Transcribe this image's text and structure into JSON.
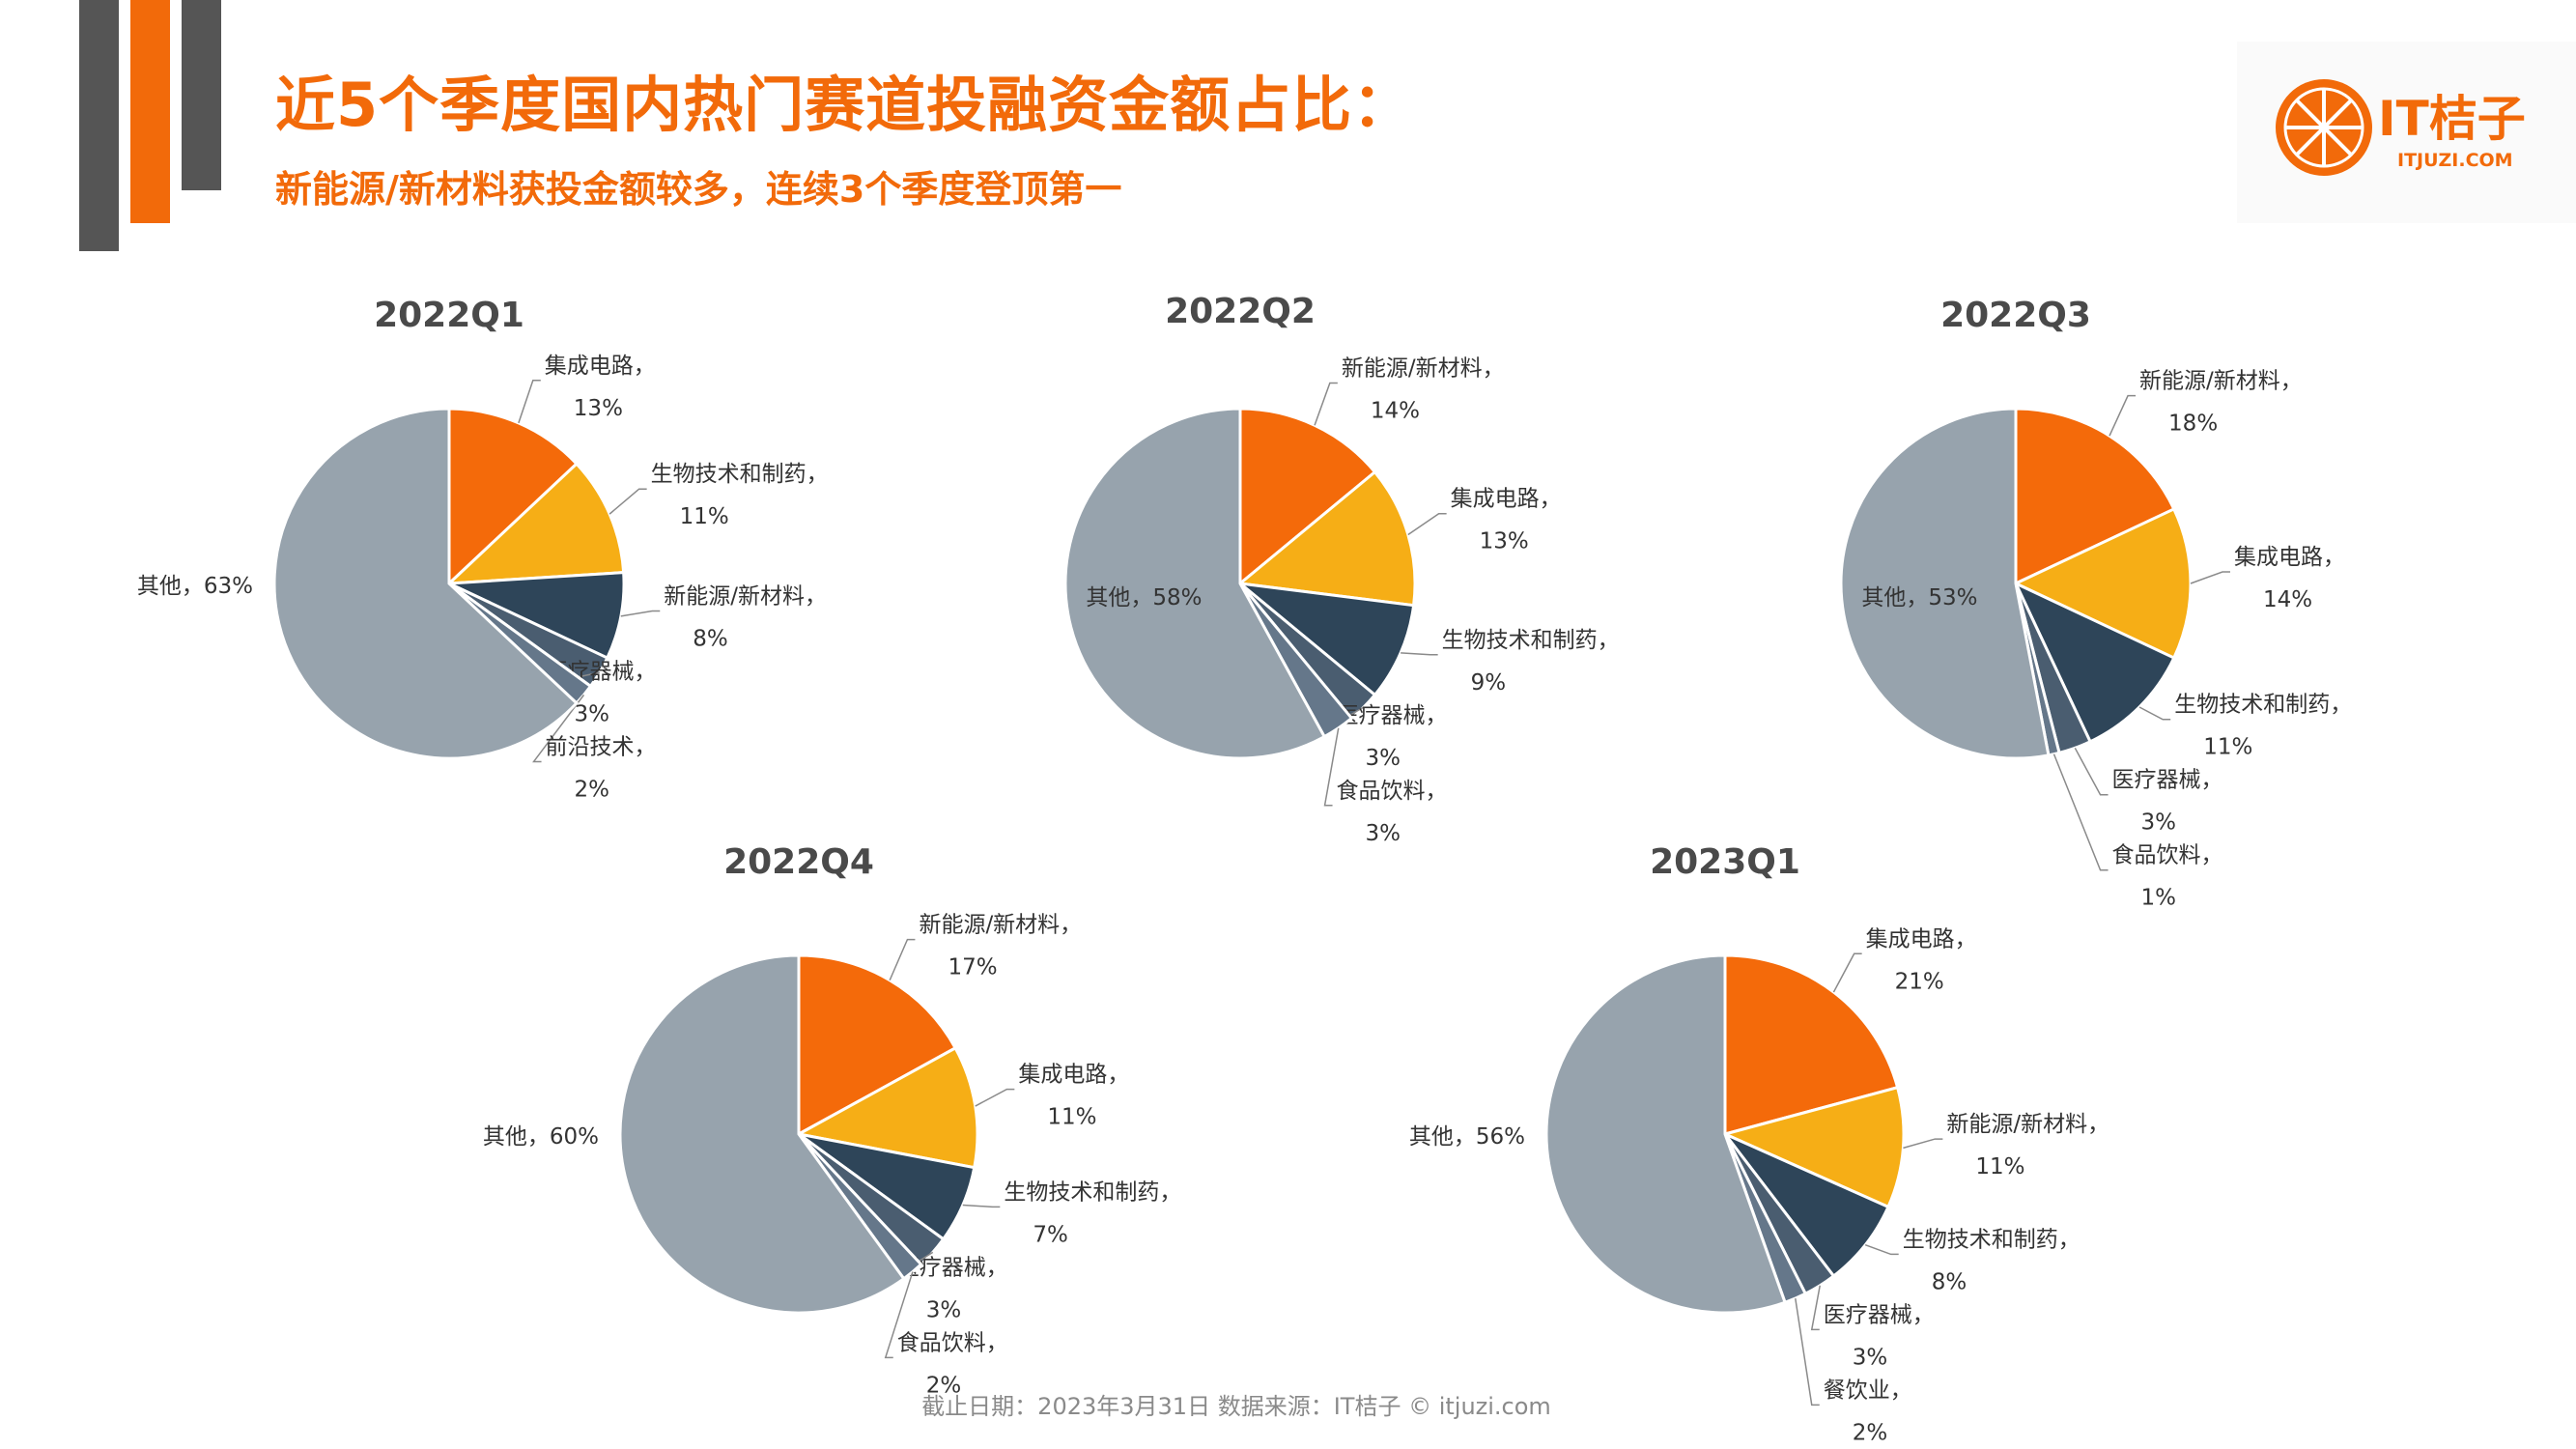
{
  "header": {
    "title": "近5个季度国内热门赛道投融资金额占比：",
    "subtitle": "新能源/新材料获投金额较多，连续3个季度登顶第一"
  },
  "logo": {
    "text": "IT桔子",
    "sub": "ITJUZI.COM"
  },
  "footer": {
    "text": "截止日期：2023年3月31日    数据来源：IT桔子 © itjuzi.com"
  },
  "colors": {
    "accent": "#F26A0A",
    "slices": [
      "#F46A0A",
      "#F6AE16",
      "#2E4559",
      "#4A5D70",
      "#65778A"
    ],
    "other": "#97A3AD",
    "title_text": "#4a4a4a"
  },
  "chart_data": [
    {
      "type": "pie",
      "title": "2022Q1",
      "slices": [
        {
          "name": "集成电路",
          "value": 13
        },
        {
          "name": "生物技术和制药",
          "value": 11
        },
        {
          "name": "新能源/新材料",
          "value": 8
        },
        {
          "name": "医疗器械",
          "value": 3
        },
        {
          "name": "前沿技术",
          "value": 2
        },
        {
          "name": "其他",
          "value": 63
        }
      ]
    },
    {
      "type": "pie",
      "title": "2022Q2",
      "slices": [
        {
          "name": "新能源/新材料",
          "value": 14
        },
        {
          "name": "集成电路",
          "value": 13
        },
        {
          "name": "生物技术和制药",
          "value": 9
        },
        {
          "name": "医疗器械",
          "value": 3
        },
        {
          "name": "食品饮料",
          "value": 3
        },
        {
          "name": "其他",
          "value": 58
        }
      ]
    },
    {
      "type": "pie",
      "title": "2022Q3",
      "slices": [
        {
          "name": "新能源/新材料",
          "value": 18
        },
        {
          "name": "集成电路",
          "value": 14
        },
        {
          "name": "生物技术和制药",
          "value": 11
        },
        {
          "name": "医疗器械",
          "value": 3
        },
        {
          "name": "食品饮料",
          "value": 1
        },
        {
          "name": "其他",
          "value": 53
        }
      ]
    },
    {
      "type": "pie",
      "title": "2022Q4",
      "slices": [
        {
          "name": "新能源/新材料",
          "value": 17
        },
        {
          "name": "集成电路",
          "value": 11
        },
        {
          "name": "生物技术和制药",
          "value": 7
        },
        {
          "name": "医疗器械",
          "value": 3
        },
        {
          "name": "食品饮料",
          "value": 2
        },
        {
          "name": "其他",
          "value": 60
        }
      ]
    },
    {
      "type": "pie",
      "title": "2023Q1",
      "slices": [
        {
          "name": "集成电路",
          "value": 21
        },
        {
          "name": "新能源/新材料",
          "value": 11
        },
        {
          "name": "生物技术和制药",
          "value": 8
        },
        {
          "name": "医疗器械",
          "value": 3
        },
        {
          "name": "餐饮业",
          "value": 2
        },
        {
          "name": "其他",
          "value": 56
        }
      ]
    }
  ]
}
